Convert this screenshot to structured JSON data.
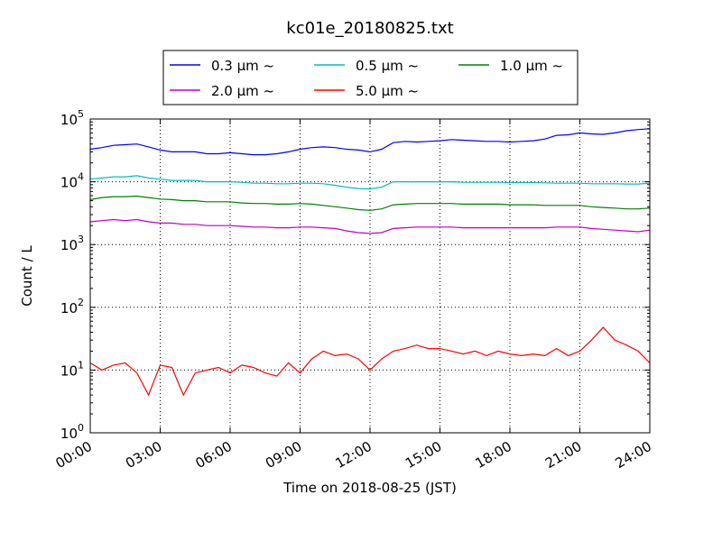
{
  "chart_data": {
    "type": "line",
    "title": "kc01e_20180825.txt",
    "xlabel": "Time on 2018-08-25 (JST)",
    "ylabel": "Count / L",
    "yscale": "log",
    "ylim": [
      1,
      100000
    ],
    "xlim": [
      "00:00",
      "24:00"
    ],
    "grid": true,
    "legend_placement": "top-center",
    "x_ticks": [
      "00:00",
      "03:00",
      "06:00",
      "09:00",
      "12:00",
      "15:00",
      "18:00",
      "21:00",
      "24:00"
    ],
    "y_ticks": [
      {
        "base": "10",
        "exp": "0"
      },
      {
        "base": "10",
        "exp": "1"
      },
      {
        "base": "10",
        "exp": "2"
      },
      {
        "base": "10",
        "exp": "3"
      },
      {
        "base": "10",
        "exp": "4"
      },
      {
        "base": "10",
        "exp": "5"
      }
    ],
    "x_hours": [
      0,
      0.5,
      1,
      1.5,
      2,
      2.5,
      3,
      3.5,
      4,
      4.5,
      5,
      5.5,
      6,
      6.5,
      7,
      7.5,
      8,
      8.5,
      9,
      9.5,
      10,
      10.5,
      11,
      11.5,
      12,
      12.5,
      13,
      13.5,
      14,
      14.5,
      15,
      15.5,
      16,
      16.5,
      17,
      17.5,
      18,
      18.5,
      19,
      19.5,
      20,
      20.5,
      21,
      21.5,
      22,
      22.5,
      23,
      23.5,
      24
    ],
    "series": [
      {
        "name": "0.3 μm ~",
        "color": "#0000ff",
        "values": [
          33000,
          35000,
          38000,
          39000,
          40000,
          36000,
          32000,
          30000,
          30000,
          30000,
          28000,
          28000,
          29000,
          28000,
          27000,
          27000,
          28000,
          30000,
          33000,
          35000,
          36000,
          35000,
          33000,
          32000,
          30000,
          33000,
          42000,
          44000,
          43000,
          44000,
          45000,
          47000,
          46000,
          45000,
          44000,
          44000,
          43000,
          44000,
          45000,
          48000,
          55000,
          56000,
          60000,
          58000,
          57000,
          60000,
          65000,
          68000,
          70000
        ]
      },
      {
        "name": "0.5 μm ~",
        "color": "#00bfbf",
        "values": [
          11000,
          11500,
          12000,
          12000,
          12500,
          11500,
          11000,
          10500,
          10500,
          10500,
          10000,
          10000,
          10000,
          9800,
          9500,
          9500,
          9300,
          9300,
          9500,
          9500,
          9300,
          8800,
          8200,
          7800,
          7700,
          8200,
          10000,
          10000,
          10000,
          10000,
          10000,
          10000,
          9800,
          9800,
          9800,
          9800,
          9700,
          9700,
          9700,
          9600,
          9500,
          9500,
          9500,
          9300,
          9300,
          9300,
          9200,
          9200,
          9500
        ]
      },
      {
        "name": "1.0 μm ~",
        "color": "#008000",
        "values": [
          5200,
          5600,
          5800,
          5800,
          5900,
          5600,
          5300,
          5200,
          5000,
          5000,
          4800,
          4800,
          4800,
          4600,
          4500,
          4500,
          4400,
          4400,
          4500,
          4400,
          4200,
          4000,
          3800,
          3600,
          3500,
          3700,
          4300,
          4400,
          4500,
          4500,
          4500,
          4500,
          4400,
          4400,
          4400,
          4400,
          4300,
          4300,
          4300,
          4200,
          4200,
          4200,
          4200,
          4000,
          3900,
          3800,
          3700,
          3700,
          3800
        ]
      },
      {
        "name": "2.0 μm ~",
        "color": "#bf00bf",
        "values": [
          2300,
          2400,
          2500,
          2400,
          2500,
          2300,
          2200,
          2200,
          2100,
          2100,
          2000,
          2000,
          2000,
          1950,
          1900,
          1900,
          1850,
          1850,
          1900,
          1900,
          1850,
          1800,
          1650,
          1550,
          1500,
          1550,
          1800,
          1850,
          1900,
          1900,
          1900,
          1900,
          1850,
          1850,
          1850,
          1850,
          1850,
          1850,
          1850,
          1850,
          1900,
          1900,
          1900,
          1800,
          1750,
          1700,
          1650,
          1600,
          1700
        ]
      },
      {
        "name": "5.0 μm ~",
        "color": "#ff0000",
        "values": [
          13,
          10,
          12,
          13,
          9,
          4,
          12,
          11,
          4,
          9,
          10,
          11,
          9,
          12,
          11,
          9,
          8,
          13,
          9,
          15,
          20,
          17,
          18,
          15,
          10,
          15,
          20,
          22,
          25,
          22,
          22,
          20,
          18,
          20,
          17,
          20,
          18,
          17,
          18,
          17,
          22,
          17,
          20,
          30,
          48,
          30,
          25,
          20,
          13
        ]
      }
    ]
  }
}
